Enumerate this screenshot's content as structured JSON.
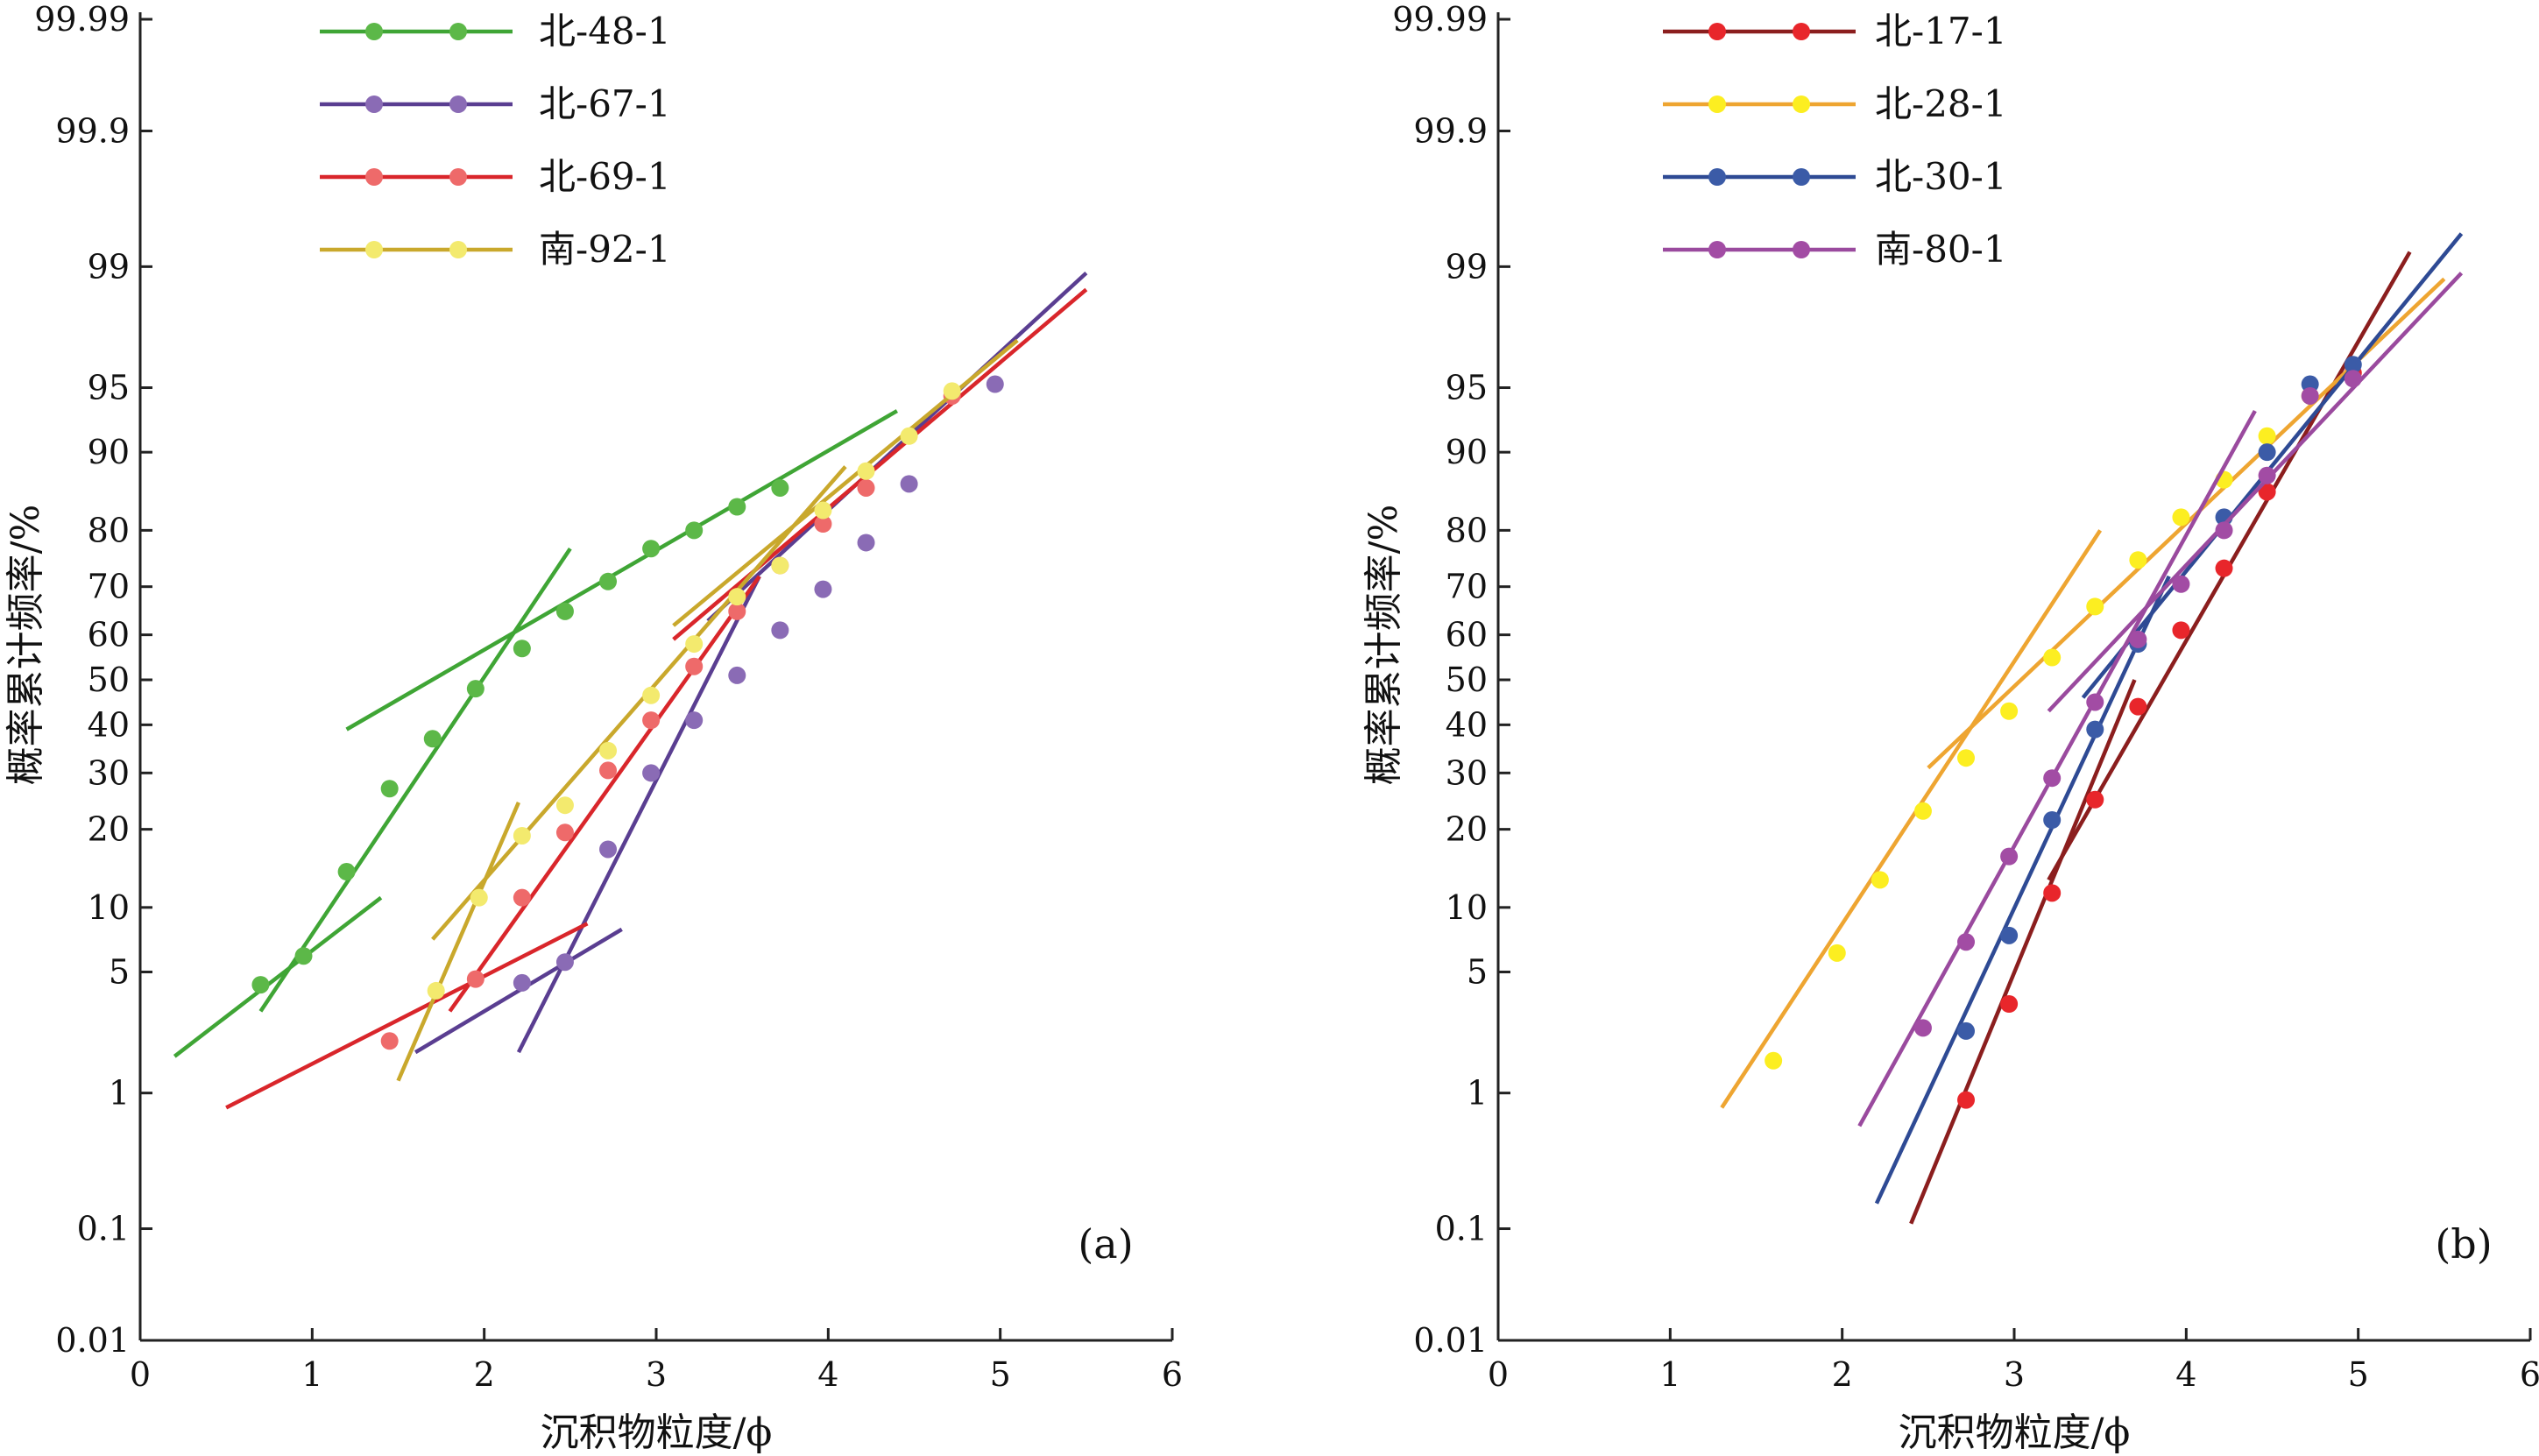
{
  "chart_data": [
    {
      "type": "scatter",
      "panel_label": "(a)",
      "xlabel": "沉积物粒度/ϕ",
      "ylabel": "概率累计频率/%",
      "xlim": [
        0,
        6
      ],
      "xticks": [
        "0",
        "1",
        "2",
        "3",
        "4",
        "5",
        "6"
      ],
      "y_scale": "probability",
      "ylim": [
        0.01,
        99.99
      ],
      "yticks": [
        "0.01",
        "0.1",
        "1",
        "5",
        "10",
        "20",
        "30",
        "40",
        "50",
        "60",
        "70",
        "80",
        "90",
        "95",
        "99",
        "99.9",
        "99.99"
      ],
      "legend_position": "top",
      "series": [
        {
          "name": "北-48-1",
          "color": "#3fa535",
          "marker_color": "#5cb848",
          "points": [
            [
              0.7,
              4.3
            ],
            [
              0.95,
              6
            ],
            [
              1.2,
              14
            ],
            [
              1.45,
              27
            ],
            [
              1.7,
              37
            ],
            [
              1.95,
              48
            ],
            [
              2.22,
              57
            ],
            [
              2.47,
              65
            ],
            [
              2.72,
              71
            ],
            [
              2.97,
              77
            ],
            [
              3.22,
              80
            ],
            [
              3.47,
              83.5
            ],
            [
              3.72,
              86
            ]
          ],
          "fit_lines": [
            [
              [
                0.2,
                1.7
              ],
              [
                1.4,
                11
              ]
            ],
            [
              [
                0.7,
                3.1
              ],
              [
                2.5,
                77
              ]
            ],
            [
              [
                1.2,
                39
              ],
              [
                4.4,
                93.5
              ]
            ]
          ]
        },
        {
          "name": "北-67-1",
          "color": "#5a3e91",
          "marker_color": "#8a6bb5",
          "points": [
            [
              2.22,
              4.4
            ],
            [
              2.47,
              5.6
            ],
            [
              2.72,
              17
            ],
            [
              2.97,
              30
            ],
            [
              3.22,
              41
            ],
            [
              3.47,
              51
            ],
            [
              3.72,
              61
            ],
            [
              3.97,
              69.5
            ],
            [
              4.22,
              78
            ],
            [
              4.47,
              86.5
            ],
            [
              4.97,
              95.2
            ]
          ],
          "fit_lines": [
            [
              [
                1.6,
                1.8
              ],
              [
                2.8,
                8
              ]
            ],
            [
              [
                2.2,
                1.8
              ],
              [
                3.6,
                72
              ]
            ],
            [
              [
                3.3,
                63
              ],
              [
                5.5,
                98.9
              ]
            ]
          ]
        },
        {
          "name": "北-69-1",
          "color": "#d9262b",
          "marker_color": "#ee6a6a",
          "points": [
            [
              1.45,
              2.1
            ],
            [
              1.95,
              4.6
            ],
            [
              2.22,
              11
            ],
            [
              2.47,
              19.5
            ],
            [
              2.72,
              30.5
            ],
            [
              2.97,
              41
            ],
            [
              3.22,
              53
            ],
            [
              3.47,
              65
            ],
            [
              3.72,
              74
            ],
            [
              3.97,
              81
            ],
            [
              4.22,
              86
            ],
            [
              4.72,
              94.5
            ]
          ],
          "fit_lines": [
            [
              [
                0.5,
                0.8
              ],
              [
                2.6,
                8.5
              ]
            ],
            [
              [
                1.8,
                3.1
              ],
              [
                3.6,
                72
              ]
            ],
            [
              [
                3.1,
                59
              ],
              [
                5.5,
                98.6
              ]
            ]
          ]
        },
        {
          "name": "南-92-1",
          "color": "#c9a82c",
          "marker_color": "#f3ea6e",
          "points": [
            [
              1.72,
              4
            ],
            [
              1.97,
              11
            ],
            [
              2.22,
              19
            ],
            [
              2.47,
              24
            ],
            [
              2.72,
              34.5
            ],
            [
              2.97,
              46.5
            ],
            [
              3.22,
              58
            ],
            [
              3.47,
              68
            ],
            [
              3.72,
              74
            ],
            [
              3.97,
              83
            ],
            [
              4.22,
              88
            ],
            [
              4.47,
              91.5
            ],
            [
              4.72,
              94.8
            ]
          ],
          "fit_lines": [
            [
              [
                1.5,
                1.2
              ],
              [
                2.2,
                24.5
              ]
            ],
            [
              [
                1.7,
                7.2
              ],
              [
                4.1,
                88.5
              ]
            ],
            [
              [
                3.1,
                62
              ],
              [
                5.1,
                97.2
              ]
            ]
          ]
        }
      ]
    },
    {
      "type": "scatter",
      "panel_label": "(b)",
      "xlabel": "沉积物粒度/ϕ",
      "ylabel": "概率累计频率/%",
      "xlim": [
        0,
        6
      ],
      "xticks": [
        "0",
        "1",
        "2",
        "3",
        "4",
        "5",
        "6"
      ],
      "y_scale": "probability",
      "ylim": [
        0.01,
        99.99
      ],
      "yticks": [
        "0.01",
        "0.1",
        "1",
        "5",
        "10",
        "20",
        "30",
        "40",
        "50",
        "60",
        "70",
        "80",
        "90",
        "95",
        "99",
        "99.9",
        "99.99"
      ],
      "legend_position": "top",
      "series": [
        {
          "name": "北-17-1",
          "color": "#8b1e1e",
          "marker_color": "#e8262b",
          "points": [
            [
              2.72,
              0.9
            ],
            [
              2.97,
              3.4
            ],
            [
              3.22,
              11.5
            ],
            [
              3.47,
              25
            ],
            [
              3.72,
              44
            ],
            [
              3.97,
              61
            ],
            [
              4.22,
              73.5
            ],
            [
              4.47,
              85.5
            ],
            [
              4.97,
              95.8
            ]
          ],
          "fit_lines": [
            [
              [
                2.4,
                0.11
              ],
              [
                3.7,
                50
              ]
            ],
            [
              [
                3.2,
                13
              ],
              [
                5.3,
                99.2
              ]
            ]
          ]
        },
        {
          "name": "北-28-1",
          "color": "#eea531",
          "marker_color": "#fcee21",
          "points": [
            [
              1.6,
              1.6
            ],
            [
              1.97,
              6.2
            ],
            [
              2.22,
              13
            ],
            [
              2.47,
              23
            ],
            [
              2.72,
              33
            ],
            [
              2.97,
              43
            ],
            [
              3.22,
              55
            ],
            [
              3.47,
              66
            ],
            [
              3.72,
              75
            ],
            [
              3.97,
              82
            ],
            [
              4.22,
              87
            ],
            [
              4.47,
              91.5
            ],
            [
              4.72,
              94.5
            ]
          ],
          "fit_lines": [
            [
              [
                1.3,
                0.8
              ],
              [
                3.5,
                80
              ]
            ],
            [
              [
                2.5,
                31
              ],
              [
                5.5,
                98.8
              ]
            ]
          ]
        },
        {
          "name": "北-30-1",
          "color": "#2e4a94",
          "marker_color": "#3b5ba7",
          "points": [
            [
              2.72,
              2.4
            ],
            [
              2.97,
              7.5
            ],
            [
              3.22,
              21.5
            ],
            [
              3.47,
              39
            ],
            [
              3.72,
              58
            ],
            [
              4.22,
              82
            ],
            [
              4.47,
              90
            ],
            [
              4.72,
              95.2
            ],
            [
              4.97,
              96.2
            ]
          ],
          "fit_lines": [
            [
              [
                2.2,
                0.16
              ],
              [
                3.9,
                72
              ]
            ],
            [
              [
                3.4,
                46
              ],
              [
                5.6,
                99.4
              ]
            ]
          ]
        },
        {
          "name": "南-80-1",
          "color": "#9a4a9e",
          "marker_color": "#a24ca4",
          "points": [
            [
              2.47,
              2.5
            ],
            [
              2.72,
              7
            ],
            [
              2.97,
              16
            ],
            [
              3.22,
              29
            ],
            [
              3.47,
              45
            ],
            [
              3.72,
              59
            ],
            [
              3.97,
              70.5
            ],
            [
              4.22,
              80
            ],
            [
              4.47,
              87.5
            ],
            [
              4.72,
              94.5
            ],
            [
              4.97,
              95.5
            ]
          ],
          "fit_lines": [
            [
              [
                2.1,
                0.6
              ],
              [
                4.4,
                93.5
              ]
            ],
            [
              [
                3.2,
                43
              ],
              [
                5.6,
                98.9
              ]
            ]
          ]
        }
      ]
    }
  ]
}
